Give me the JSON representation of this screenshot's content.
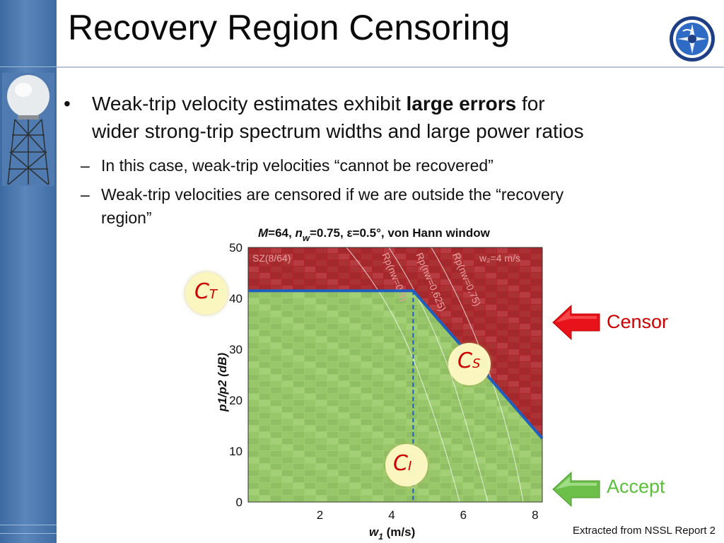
{
  "slide": {
    "title": "Recovery Region Censoring",
    "bullets": [
      {
        "pre": "Weak-trip velocity estimates exhibit ",
        "bold": "large errors",
        "post": " for",
        "line2": "wider strong-trip spectrum widths and large power ratios"
      }
    ],
    "sub_bullets": [
      {
        "dash": "–",
        "text": "In this case, weak-trip velocities “cannot be recovered”"
      },
      {
        "dash": "–",
        "text": "Weak-trip velocities are censored if we are outside the “recovery",
        "line2": "region”"
      }
    ],
    "source": "Extracted from NSSL Report 2"
  },
  "callouts": {
    "censor": "Censor",
    "accept": "Accept",
    "ct_main": "C",
    "ct_sub": "T",
    "cs_main": "C",
    "cs_sub": "S",
    "ci_main": "C",
    "ci_sub": "I"
  },
  "colors": {
    "censor_region": "#b0242e",
    "accept_region": "#9ccc6c",
    "boundary": "#1f5fbf",
    "censor_arrow": "#e8121a",
    "accept_arrow": "#6cc04a"
  },
  "chart_data": {
    "type": "heatmap",
    "title_parts": {
      "m": "M",
      "m_rest": "=64, ",
      "n": "n",
      "n_sub": "w",
      "rest": "=0.75, ε=0.5°, von Hann window"
    },
    "xlabel": "w",
    "xlabel_sub": "1",
    "xlabel_unit": " (m/s)",
    "ylabel": "p1/p2 (dB)",
    "xlim": [
      0,
      8.2
    ],
    "ylim": [
      0,
      50
    ],
    "xticks": [
      2,
      4,
      6,
      8
    ],
    "yticks": [
      0,
      10,
      20,
      30,
      40,
      50
    ],
    "inner_labels": {
      "sz": "SZ(8/64)",
      "w2": "w₂=4 m/s",
      "curves": [
        "Rp(nw=0.5)",
        "Rp(nw=0.625)",
        "Rp(nw=0.75)"
      ]
    },
    "boundary": {
      "x": [
        0,
        4.6,
        8.2
      ],
      "y": [
        41.5,
        41.5,
        12.5
      ]
    },
    "ci_x": 4.6
  }
}
